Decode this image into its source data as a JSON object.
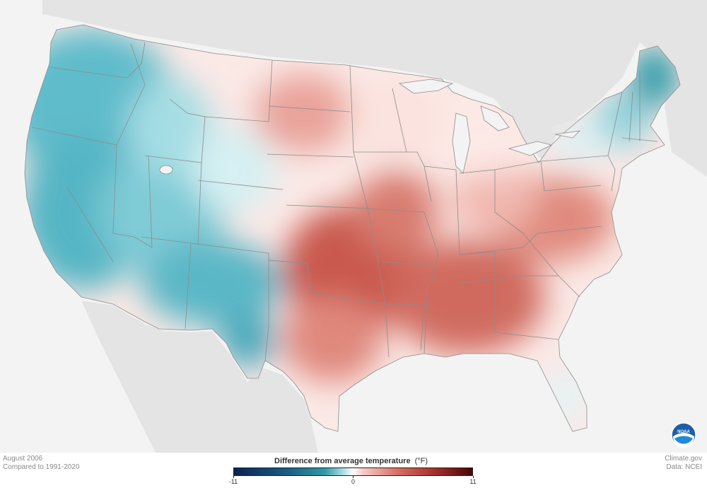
{
  "map": {
    "region": "Contiguous United States",
    "variable": "Difference from average temperature",
    "colors": {
      "background_land": "#e6e6e6",
      "ocean": "#f3f3f3",
      "cold_strong": "#0b2350",
      "cold": "#2e9aa8",
      "neutral": "#ffffff",
      "warm": "#d97266",
      "warm_strong": "#4a0505",
      "state_border": "#8c8c8c"
    },
    "regional_anomalies": [
      {
        "region": "Pacific Northwest",
        "level": "cool"
      },
      {
        "region": "California",
        "level": "cool"
      },
      {
        "region": "Great Basin",
        "level": "cool"
      },
      {
        "region": "Desert Southwest",
        "level": "cool"
      },
      {
        "region": "Northern Plains",
        "level": "warm"
      },
      {
        "region": "Southern Plains",
        "level": "very warm"
      },
      {
        "region": "Southeast",
        "level": "very warm"
      },
      {
        "region": "Mid-Atlantic",
        "level": "warm"
      },
      {
        "region": "Northern New England",
        "level": "cool"
      },
      {
        "region": "Florida",
        "level": "near average"
      }
    ]
  },
  "footer": {
    "date_label": "August 2006",
    "baseline_label": "Compared to 1991-2020",
    "source_label": "Climate.gov",
    "data_label": "Data: NCEI"
  },
  "legend": {
    "title": "Difference from average temperature",
    "unit": "(°F)",
    "min": -11,
    "max": 11,
    "ticks": [
      {
        "value": -11,
        "label": "-11"
      },
      {
        "value": 0,
        "label": "0"
      },
      {
        "value": 11,
        "label": "11"
      }
    ]
  },
  "logo": {
    "icon": "noaa-logo-icon",
    "text": "NOAA"
  }
}
